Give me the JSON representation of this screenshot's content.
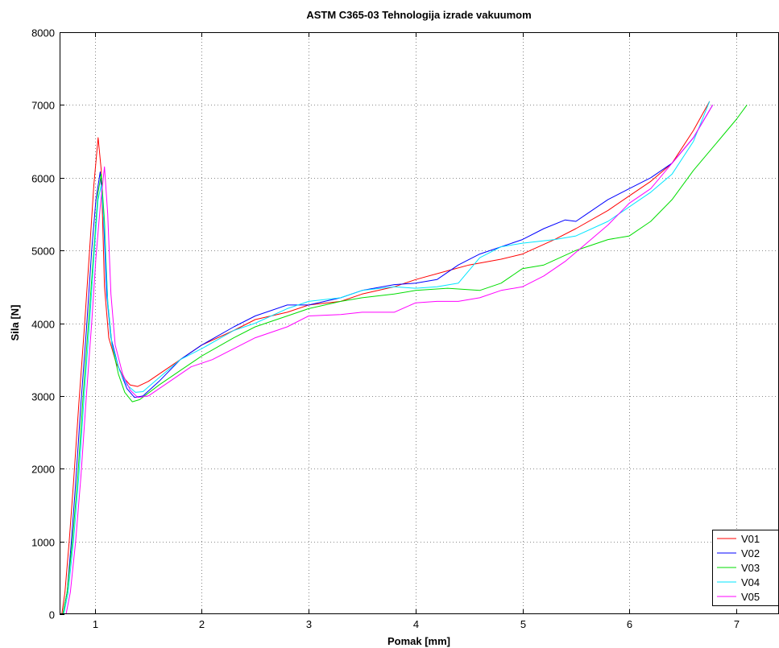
{
  "chart_data": {
    "type": "line",
    "title": "ASTM C365-03 Tehnologija izrade vakuumom",
    "xlabel": "Pomak [mm]",
    "ylabel": "Sila [N]",
    "xlim": [
      0.67,
      7.4
    ],
    "ylim": [
      0,
      8000
    ],
    "xticks": [
      1,
      2,
      3,
      4,
      5,
      6,
      7
    ],
    "yticks": [
      0,
      1000,
      2000,
      3000,
      4000,
      5000,
      6000,
      7000,
      8000
    ],
    "grid": true,
    "legend_position": "bottom-right",
    "series": [
      {
        "name": "V01",
        "color": "#ff0000",
        "points": [
          [
            0.69,
            0
          ],
          [
            0.72,
            300
          ],
          [
            0.76,
            1000
          ],
          [
            0.8,
            1800
          ],
          [
            0.85,
            2900
          ],
          [
            0.9,
            3900
          ],
          [
            0.95,
            5000
          ],
          [
            0.99,
            5900
          ],
          [
            1.03,
            6550
          ],
          [
            1.06,
            6100
          ],
          [
            1.09,
            4500
          ],
          [
            1.13,
            3800
          ],
          [
            1.2,
            3450
          ],
          [
            1.27,
            3250
          ],
          [
            1.33,
            3150
          ],
          [
            1.4,
            3130
          ],
          [
            1.5,
            3200
          ],
          [
            1.7,
            3400
          ],
          [
            2.0,
            3700
          ],
          [
            2.3,
            3900
          ],
          [
            2.5,
            4050
          ],
          [
            2.8,
            4150
          ],
          [
            3.0,
            4250
          ],
          [
            3.3,
            4300
          ],
          [
            3.5,
            4400
          ],
          [
            3.8,
            4500
          ],
          [
            4.0,
            4600
          ],
          [
            4.3,
            4720
          ],
          [
            4.5,
            4800
          ],
          [
            4.8,
            4880
          ],
          [
            5.0,
            4950
          ],
          [
            5.3,
            5150
          ],
          [
            5.5,
            5300
          ],
          [
            5.8,
            5550
          ],
          [
            6.0,
            5750
          ],
          [
            6.2,
            5950
          ],
          [
            6.4,
            6200
          ],
          [
            6.6,
            6650
          ],
          [
            6.75,
            7050
          ]
        ]
      },
      {
        "name": "V02",
        "color": "#0000ff",
        "points": [
          [
            0.7,
            0
          ],
          [
            0.74,
            300
          ],
          [
            0.78,
            1000
          ],
          [
            0.82,
            1800
          ],
          [
            0.87,
            2900
          ],
          [
            0.92,
            3900
          ],
          [
            0.97,
            5000
          ],
          [
            1.01,
            5700
          ],
          [
            1.05,
            6080
          ],
          [
            1.08,
            5500
          ],
          [
            1.11,
            4400
          ],
          [
            1.15,
            3800
          ],
          [
            1.22,
            3400
          ],
          [
            1.3,
            3100
          ],
          [
            1.37,
            2980
          ],
          [
            1.45,
            3000
          ],
          [
            1.6,
            3200
          ],
          [
            1.8,
            3500
          ],
          [
            2.0,
            3700
          ],
          [
            2.3,
            3950
          ],
          [
            2.5,
            4100
          ],
          [
            2.8,
            4250
          ],
          [
            3.0,
            4250
          ],
          [
            3.3,
            4350
          ],
          [
            3.5,
            4450
          ],
          [
            3.8,
            4530
          ],
          [
            4.0,
            4550
          ],
          [
            4.2,
            4600
          ],
          [
            4.4,
            4800
          ],
          [
            4.6,
            4950
          ],
          [
            4.8,
            5050
          ],
          [
            5.0,
            5150
          ],
          [
            5.2,
            5300
          ],
          [
            5.4,
            5420
          ],
          [
            5.5,
            5400
          ],
          [
            5.6,
            5500
          ],
          [
            5.8,
            5700
          ],
          [
            6.0,
            5850
          ],
          [
            6.2,
            6000
          ],
          [
            6.4,
            6200
          ],
          [
            6.6,
            6550
          ],
          [
            6.78,
            7000
          ]
        ]
      },
      {
        "name": "V03",
        "color": "#00dd00",
        "points": [
          [
            0.7,
            0
          ],
          [
            0.74,
            300
          ],
          [
            0.79,
            1000
          ],
          [
            0.84,
            1900
          ],
          [
            0.89,
            3000
          ],
          [
            0.94,
            4000
          ],
          [
            0.99,
            5000
          ],
          [
            1.03,
            5800
          ],
          [
            1.06,
            6050
          ],
          [
            1.09,
            5400
          ],
          [
            1.12,
            4300
          ],
          [
            1.16,
            3700
          ],
          [
            1.22,
            3300
          ],
          [
            1.28,
            3050
          ],
          [
            1.35,
            2920
          ],
          [
            1.42,
            2950
          ],
          [
            1.6,
            3150
          ],
          [
            1.8,
            3350
          ],
          [
            2.0,
            3550
          ],
          [
            2.3,
            3800
          ],
          [
            2.5,
            3950
          ],
          [
            2.8,
            4100
          ],
          [
            3.0,
            4200
          ],
          [
            3.3,
            4300
          ],
          [
            3.5,
            4350
          ],
          [
            3.8,
            4400
          ],
          [
            4.0,
            4450
          ],
          [
            4.3,
            4480
          ],
          [
            4.6,
            4450
          ],
          [
            4.8,
            4550
          ],
          [
            5.0,
            4750
          ],
          [
            5.2,
            4800
          ],
          [
            5.5,
            5000
          ],
          [
            5.8,
            5150
          ],
          [
            6.0,
            5200
          ],
          [
            6.2,
            5400
          ],
          [
            6.4,
            5700
          ],
          [
            6.6,
            6100
          ],
          [
            6.8,
            6450
          ],
          [
            7.0,
            6800
          ],
          [
            7.1,
            7000
          ]
        ]
      },
      {
        "name": "V04",
        "color": "#00e5ff",
        "points": [
          [
            0.71,
            0
          ],
          [
            0.75,
            300
          ],
          [
            0.8,
            1000
          ],
          [
            0.85,
            1900
          ],
          [
            0.9,
            3000
          ],
          [
            0.95,
            4000
          ],
          [
            0.99,
            4900
          ],
          [
            1.03,
            5700
          ],
          [
            1.06,
            5900
          ],
          [
            1.09,
            5300
          ],
          [
            1.12,
            4300
          ],
          [
            1.16,
            3700
          ],
          [
            1.23,
            3350
          ],
          [
            1.3,
            3150
          ],
          [
            1.38,
            3050
          ],
          [
            1.45,
            3060
          ],
          [
            1.6,
            3250
          ],
          [
            1.8,
            3500
          ],
          [
            2.0,
            3650
          ],
          [
            2.3,
            3900
          ],
          [
            2.5,
            4000
          ],
          [
            2.8,
            4200
          ],
          [
            3.0,
            4300
          ],
          [
            3.3,
            4350
          ],
          [
            3.5,
            4450
          ],
          [
            3.8,
            4500
          ],
          [
            4.0,
            4480
          ],
          [
            4.2,
            4500
          ],
          [
            4.4,
            4550
          ],
          [
            4.6,
            4900
          ],
          [
            4.8,
            5050
          ],
          [
            5.0,
            5100
          ],
          [
            5.3,
            5150
          ],
          [
            5.5,
            5200
          ],
          [
            5.8,
            5400
          ],
          [
            6.0,
            5600
          ],
          [
            6.2,
            5800
          ],
          [
            6.4,
            6050
          ],
          [
            6.6,
            6500
          ],
          [
            6.75,
            7050
          ]
        ]
      },
      {
        "name": "V05",
        "color": "#ff00ff",
        "points": [
          [
            0.73,
            0
          ],
          [
            0.77,
            300
          ],
          [
            0.82,
            1000
          ],
          [
            0.87,
            1900
          ],
          [
            0.92,
            3000
          ],
          [
            0.97,
            4000
          ],
          [
            1.01,
            4900
          ],
          [
            1.05,
            5600
          ],
          [
            1.09,
            6150
          ],
          [
            1.12,
            5500
          ],
          [
            1.15,
            4400
          ],
          [
            1.19,
            3700
          ],
          [
            1.26,
            3300
          ],
          [
            1.33,
            3080
          ],
          [
            1.4,
            2980
          ],
          [
            1.5,
            3000
          ],
          [
            1.7,
            3200
          ],
          [
            1.9,
            3400
          ],
          [
            2.1,
            3500
          ],
          [
            2.3,
            3650
          ],
          [
            2.5,
            3800
          ],
          [
            2.8,
            3950
          ],
          [
            3.0,
            4100
          ],
          [
            3.3,
            4120
          ],
          [
            3.5,
            4150
          ],
          [
            3.8,
            4150
          ],
          [
            4.0,
            4280
          ],
          [
            4.2,
            4300
          ],
          [
            4.4,
            4300
          ],
          [
            4.6,
            4350
          ],
          [
            4.8,
            4450
          ],
          [
            5.0,
            4500
          ],
          [
            5.2,
            4650
          ],
          [
            5.4,
            4850
          ],
          [
            5.6,
            5100
          ],
          [
            5.8,
            5350
          ],
          [
            6.0,
            5650
          ],
          [
            6.2,
            5850
          ],
          [
            6.4,
            6200
          ],
          [
            6.6,
            6550
          ],
          [
            6.78,
            7000
          ]
        ]
      }
    ]
  }
}
